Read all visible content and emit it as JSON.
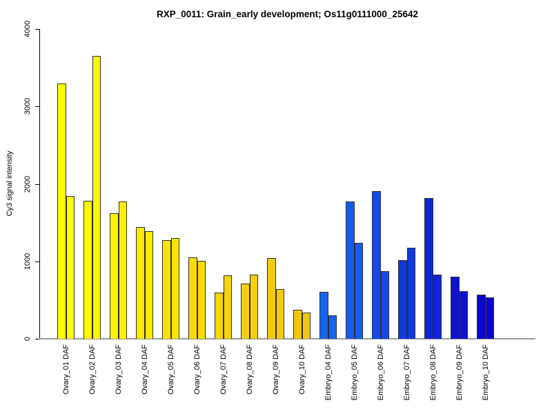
{
  "page": {
    "background": "#FFFFFF"
  },
  "chart_data": {
    "type": "bar",
    "title": "RXP_0011: Grain_early development; Os11g0111000_25642",
    "xlabel": "",
    "ylabel": "Cy3 signal intensity",
    "ylim": [
      0,
      4000
    ],
    "yticks": [
      "0",
      "1000",
      "2000",
      "3000",
      "4000"
    ],
    "grid": false,
    "legend_position": "none",
    "bars_per_group": 2,
    "axis_color": "#000000",
    "baseline_color": "#9A9A9A",
    "bar_border_color": "#2E2E2E",
    "groups": [
      {
        "label": "Ovary_01 DAF",
        "values": [
          3300,
          1840
        ],
        "color": "#FEFE00"
      },
      {
        "label": "Ovary_02 DAF",
        "values": [
          1780,
          3650
        ],
        "color": "#FDF800"
      },
      {
        "label": "Ovary_03 DAF",
        "values": [
          1620,
          1770
        ],
        "color": "#FCF200"
      },
      {
        "label": "Ovary_04 DAF",
        "values": [
          1440,
          1390
        ],
        "color": "#FBEB00"
      },
      {
        "label": "Ovary_05 DAF",
        "values": [
          1270,
          1300
        ],
        "color": "#FAE303"
      },
      {
        "label": "Ovary_06 DAF",
        "values": [
          1050,
          1010
        ],
        "color": "#F8DB06"
      },
      {
        "label": "Ovary_07 DAF",
        "values": [
          600,
          820
        ],
        "color": "#F7D40A"
      },
      {
        "label": "Ovary_08 DAF",
        "values": [
          715,
          830
        ],
        "color": "#F5CF0C"
      },
      {
        "label": "Ovary_09 DAF",
        "values": [
          1040,
          640
        ],
        "color": "#F3CA0E"
      },
      {
        "label": "Ovary_10 DAF",
        "values": [
          370,
          335
        ],
        "color": "#F0C60F"
      },
      {
        "label": "Embryo_04 DAF",
        "values": [
          610,
          300
        ],
        "color": "#1565EC"
      },
      {
        "label": "Embryo_05 DAF",
        "values": [
          1770,
          1240
        ],
        "color": "#145CEE"
      },
      {
        "label": "Embryo_06 DAF",
        "values": [
          1910,
          875
        ],
        "color": "#1249E8"
      },
      {
        "label": "Embryo_07 DAF",
        "values": [
          1020,
          1180
        ],
        "color": "#1039E0"
      },
      {
        "label": "Embryo_08 DAF",
        "values": [
          1820,
          830
        ],
        "color": "#0E26D6"
      },
      {
        "label": "Embryo_09 DAF",
        "values": [
          800,
          615
        ],
        "color": "#0C13D0"
      },
      {
        "label": "Embryo_10 DAF",
        "values": [
          570,
          535
        ],
        "color": "#0A07CA"
      }
    ]
  }
}
